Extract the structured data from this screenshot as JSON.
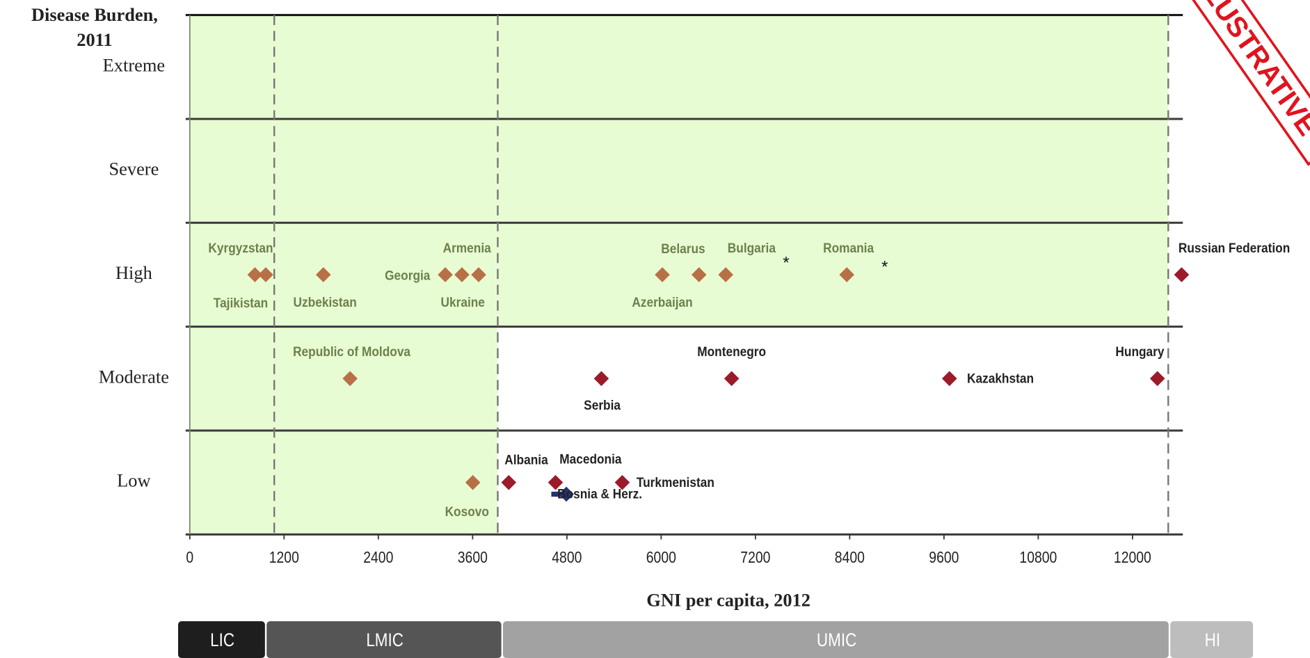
{
  "chart_data": {
    "type": "scatter",
    "y_axis_title": [
      "Disease Burden,",
      "2011"
    ],
    "x_axis_title": "GNI per capita, 2012",
    "categories": [
      "Low",
      "Moderate",
      "High",
      "Severe",
      "Extreme"
    ],
    "xlim": [
      0,
      12630
    ],
    "xticks": [
      0,
      1200,
      2400,
      3600,
      4800,
      6000,
      7200,
      8400,
      9600,
      10800,
      12000
    ],
    "thresholds": [
      1075,
      3920,
      12455
    ],
    "income_groups": [
      "LIC",
      "LMIC",
      "UMIC",
      "HI"
    ],
    "shading_color": "#e8fcd4",
    "points": [
      {
        "label": "Tajikistan",
        "x": 829,
        "y": "High",
        "color": "#b87046"
      },
      {
        "label": "Kyrgyzstan",
        "x": 967,
        "y": "High",
        "color": "#b87046"
      },
      {
        "label": "Uzbekistan",
        "x": 1700,
        "y": "High",
        "color": "#b87046"
      },
      {
        "label": "Georgia",
        "x": 3252,
        "y": "High",
        "color": "#b87046"
      },
      {
        "label": "Armenia",
        "x": 3464,
        "y": "High",
        "color": "#b87046"
      },
      {
        "label": "Ukraine",
        "x": 3677,
        "y": "High",
        "color": "#b87046"
      },
      {
        "label": "Azerbaijan",
        "x": 6015,
        "y": "High",
        "color": "#b87046"
      },
      {
        "label": "Belarus",
        "x": 6482,
        "y": "High",
        "color": "#b87046"
      },
      {
        "label": "Bulgaria",
        "x": 6822,
        "y": "High",
        "color": "#b87046"
      },
      {
        "label": "Romania",
        "x": 8363,
        "y": "High",
        "color": "#b87046"
      },
      {
        "label": "Russian Federation",
        "x": 12625,
        "y": "High",
        "color": "#9b1b2a"
      },
      {
        "label": "Republic of Moldova",
        "x": 2040,
        "y": "Moderate",
        "color": "#b87046"
      },
      {
        "label": "Serbia",
        "x": 5239,
        "y": "Moderate",
        "color": "#9b1b2a"
      },
      {
        "label": "Montenegro",
        "x": 6897,
        "y": "Moderate",
        "color": "#9b1b2a"
      },
      {
        "label": "Kazakhstan",
        "x": 9670,
        "y": "Moderate",
        "color": "#9b1b2a"
      },
      {
        "label": "Hungary",
        "x": 12317,
        "y": "Moderate",
        "color": "#9b1b2a"
      },
      {
        "label": "Kosovo",
        "x": 3603,
        "y": "Low",
        "color": "#b87046"
      },
      {
        "label": "Albania",
        "x": 4060,
        "y": "Low",
        "color": "#9b1b2a"
      },
      {
        "label": "Macedonia",
        "x": 4655,
        "y": "Low",
        "color": "#9b1b2a"
      },
      {
        "label": "Turkmenistan",
        "x": 5505,
        "y": "Low",
        "color": "#9b1b2a"
      },
      {
        "label": "Bosnia & Herz.",
        "x": 4793,
        "y": "Low",
        "color": "#26307a"
      }
    ],
    "annotations": [
      "*",
      "*"
    ],
    "stamp": "ILLUSTRATIVE"
  }
}
